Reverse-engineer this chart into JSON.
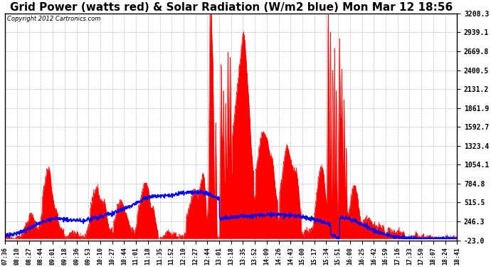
{
  "title": "Grid Power (watts red) & Solar Radiation (W/m2 blue) Mon Mar 12 18:56",
  "copyright": "Copyright 2012 Cartronics.com",
  "ylim": [
    -23.0,
    3208.3
  ],
  "yticks": [
    3208.3,
    2939.1,
    2669.8,
    2400.5,
    2131.2,
    1861.9,
    1592.7,
    1323.4,
    1054.1,
    784.8,
    515.5,
    246.3,
    -23.0
  ],
  "bg_color": "#ffffff",
  "plot_bg_color": "#ffffff",
  "grid_color": "#aaaaaa",
  "title_fontsize": 11,
  "x_labels": [
    "07:36",
    "08:10",
    "08:27",
    "08:44",
    "09:01",
    "09:18",
    "09:36",
    "09:53",
    "10:10",
    "10:27",
    "10:44",
    "11:01",
    "11:18",
    "11:35",
    "11:52",
    "12:10",
    "12:27",
    "12:44",
    "13:01",
    "13:18",
    "13:35",
    "13:52",
    "14:09",
    "14:26",
    "14:43",
    "15:00",
    "15:17",
    "15:34",
    "15:51",
    "16:08",
    "16:25",
    "16:42",
    "16:59",
    "17:16",
    "17:33",
    "17:50",
    "18:07",
    "18:24",
    "18:41"
  ]
}
